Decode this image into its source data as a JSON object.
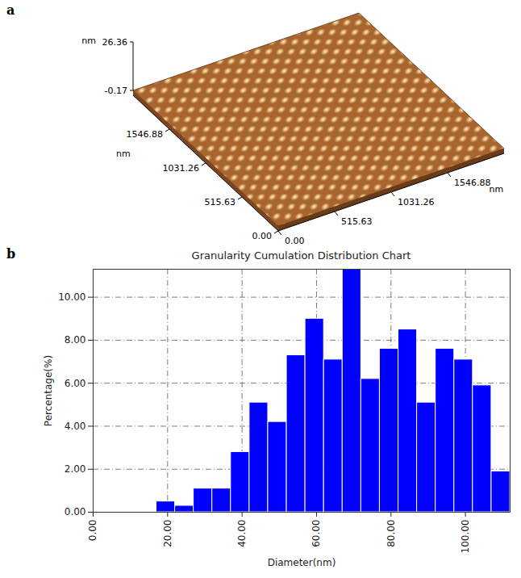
{
  "chart_data": [
    {
      "panel": "a",
      "type": "surface",
      "xlabel": "nm",
      "ylabel": "nm",
      "zlabel": "nm",
      "xlim": [
        0,
        2062.5
      ],
      "ylim": [
        0,
        2062.5
      ],
      "zlim": [
        -0.17,
        26.36
      ],
      "xticks": [
        {
          "value": 0,
          "label": "0.00"
        },
        515.63,
        1031.26,
        1546.88
      ],
      "yticks": [
        {
          "value": 0,
          "label": "0.00"
        },
        515.63,
        1031.26,
        1546.88
      ],
      "zticks": [
        -0.17,
        26.36
      ]
    },
    {
      "panel": "b",
      "type": "histogram",
      "title": "Granularity Cumulation Distribution  Chart",
      "xlabel": "Diameter(nm)",
      "ylabel": "Percentage(%)",
      "bins": [
        17,
        22,
        27,
        32,
        37,
        42,
        47,
        52,
        57,
        62,
        67,
        72,
        77,
        82,
        87,
        92,
        97,
        102,
        107,
        112
      ],
      "values": [
        0.5,
        0.3,
        1.1,
        1.1,
        2.8,
        5.1,
        4.2,
        7.3,
        9.0,
        7.1,
        11.3,
        6.2,
        7.6,
        8.5,
        5.1,
        7.6,
        7.1,
        5.9,
        1.9
      ],
      "color": "#0000ff",
      "xlim": [
        0,
        112
      ],
      "ylim": [
        0,
        11.3
      ],
      "xticks": [
        {
          "value": 0,
          "label": "0.00"
        },
        {
          "value": 20,
          "label": "20.00"
        },
        {
          "value": 40,
          "label": "40.00"
        },
        {
          "value": 60,
          "label": "60.00"
        },
        {
          "value": 80,
          "label": "80.00"
        },
        {
          "value": 100,
          "label": "100.00"
        }
      ],
      "yticks": [
        {
          "value": 0,
          "label": "0.00"
        },
        {
          "value": 2,
          "label": "2.00"
        },
        {
          "value": 4,
          "label": "4.00"
        },
        {
          "value": 6,
          "label": "6.00"
        },
        {
          "value": 8,
          "label": "8.00"
        },
        {
          "value": 10,
          "label": "10.00"
        }
      ],
      "grid": true
    }
  ]
}
